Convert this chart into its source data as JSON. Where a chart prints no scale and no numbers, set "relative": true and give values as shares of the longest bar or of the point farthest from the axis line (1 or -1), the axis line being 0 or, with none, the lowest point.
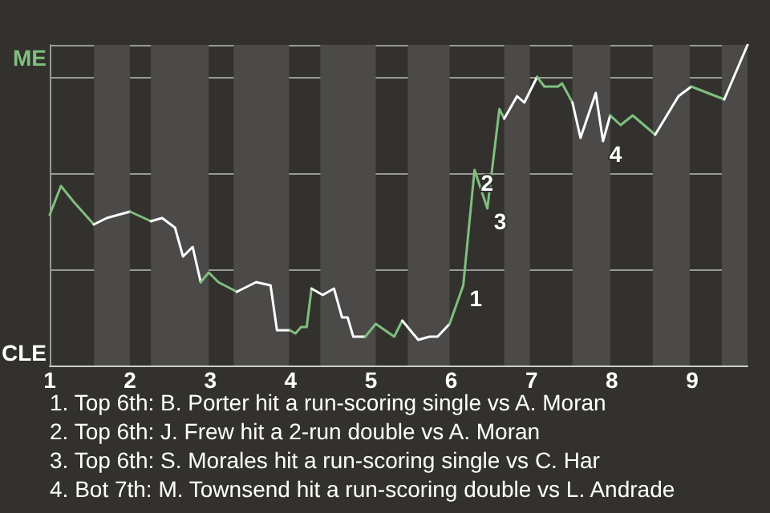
{
  "chart_data": {
    "type": "line",
    "relative": true,
    "marker": "none",
    "line_style": "solid",
    "grid": "y",
    "xlim": [
      1,
      9.69
    ],
    "xticks": [
      1,
      2,
      3,
      4,
      5,
      6,
      7,
      8,
      9
    ],
    "bands": [
      {
        "axis": "x",
        "from": 1.55,
        "to": 2.0,
        "color": "#4b4a48"
      },
      {
        "axis": "x",
        "from": 2.26,
        "to": 2.98,
        "color": "#4b4a48"
      },
      {
        "axis": "x",
        "from": 3.29,
        "to": 3.98,
        "color": "#4b4a48"
      },
      {
        "axis": "x",
        "from": 4.37,
        "to": 5.06,
        "color": "#4b4a48"
      },
      {
        "axis": "x",
        "from": 5.46,
        "to": 5.98,
        "color": "#4b4a48"
      },
      {
        "axis": "x",
        "from": 6.66,
        "to": 6.98,
        "color": "#4b4a48"
      },
      {
        "axis": "x",
        "from": 7.51,
        "to": 7.98,
        "color": "#4b4a48"
      },
      {
        "axis": "x",
        "from": 8.51,
        "to": 8.97,
        "color": "#4b4a48"
      },
      {
        "axis": "x",
        "from": 9.37,
        "to": 9.69,
        "color": "#4b4a48"
      }
    ],
    "series": [
      {
        "color": "#7fbf7f",
        "x": [
          1.0,
          1.14,
          1.3,
          1.55
        ],
        "values": [
          0.47,
          0.56,
          0.51,
          0.44
        ]
      },
      {
        "color": "#ffffff",
        "x": [
          1.55,
          1.71,
          2.0
        ],
        "values": [
          0.44,
          0.46,
          0.48
        ]
      },
      {
        "color": "#7fbf7f",
        "x": [
          2.0,
          2.26
        ],
        "values": [
          0.48,
          0.45
        ]
      },
      {
        "color": "#ffffff",
        "x": [
          2.26,
          2.4,
          2.56,
          2.66,
          2.78,
          2.88
        ],
        "values": [
          0.45,
          0.46,
          0.43,
          0.34,
          0.37,
          0.26
        ]
      },
      {
        "color": "#7fbf7f",
        "x": [
          2.88,
          2.98,
          3.1,
          3.33
        ],
        "values": [
          0.26,
          0.29,
          0.26,
          0.23
        ]
      },
      {
        "color": "#ffffff",
        "x": [
          3.33,
          3.57,
          3.75,
          3.83,
          3.99
        ],
        "values": [
          0.23,
          0.26,
          0.25,
          0.11,
          0.11
        ]
      },
      {
        "color": "#7fbf7f",
        "x": [
          3.99,
          4.06,
          4.13,
          4.2,
          4.26
        ],
        "values": [
          0.11,
          0.1,
          0.12,
          0.12,
          0.24
        ]
      },
      {
        "color": "#ffffff",
        "x": [
          4.26,
          4.4,
          4.54,
          4.64,
          4.71,
          4.78,
          4.93
        ],
        "values": [
          0.24,
          0.22,
          0.24,
          0.15,
          0.15,
          0.09,
          0.09
        ]
      },
      {
        "color": "#7fbf7f",
        "x": [
          4.93,
          5.06,
          5.29,
          5.39
        ],
        "values": [
          0.09,
          0.13,
          0.09,
          0.14
        ]
      },
      {
        "color": "#ffffff",
        "x": [
          5.39,
          5.59,
          5.73,
          5.83,
          5.98
        ],
        "values": [
          0.14,
          0.08,
          0.09,
          0.09,
          0.13
        ]
      },
      {
        "color": "#7fbf7f",
        "x": [
          5.98,
          6.15,
          6.29,
          6.45,
          6.6,
          6.66
        ],
        "values": [
          0.13,
          0.25,
          0.61,
          0.49,
          0.8,
          0.77
        ]
      },
      {
        "color": "#ffffff",
        "x": [
          6.66,
          6.82,
          6.91,
          7.07
        ],
        "values": [
          0.77,
          0.84,
          0.82,
          0.9
        ]
      },
      {
        "color": "#7fbf7f",
        "x": [
          7.07,
          7.16,
          7.33,
          7.38,
          7.51
        ],
        "values": [
          0.9,
          0.87,
          0.87,
          0.88,
          0.82
        ]
      },
      {
        "color": "#ffffff",
        "x": [
          7.51,
          7.61,
          7.8,
          7.89,
          7.98
        ],
        "values": [
          0.82,
          0.71,
          0.85,
          0.7,
          0.78
        ]
      },
      {
        "color": "#7fbf7f",
        "x": [
          7.98,
          8.11,
          8.26,
          8.54
        ],
        "values": [
          0.78,
          0.75,
          0.78,
          0.72
        ]
      },
      {
        "color": "#ffffff",
        "x": [
          8.54,
          8.83,
          8.99
        ],
        "values": [
          0.72,
          0.84,
          0.87
        ]
      },
      {
        "color": "#7fbf7f",
        "x": [
          8.99,
          9.4
        ],
        "values": [
          0.87,
          0.83
        ]
      },
      {
        "color": "#ffffff",
        "x": [
          9.4,
          9.69
        ],
        "values": [
          0.83,
          1
        ]
      }
    ],
    "annotations": [
      "ME",
      "CLE",
      {
        "text": "1",
        "x": 6.15,
        "y": 0.25
      },
      {
        "text": "2",
        "x": 6.29,
        "y": 0.61
      },
      {
        "text": "3",
        "x": 6.45,
        "y": 0.49
      },
      {
        "text": "4",
        "x": 7.89,
        "y": 0.7
      },
      "1. Top 6th: B. Porter hit a run-scoring single vs A. Moran",
      "2. Top 6th: J. Frew hit a 2-run double vs A. Moran",
      "3. Top 6th: S. Morales hit a run-scoring single vs C. Har",
      "4. Bot 7th: M. Townsend hit a run-scoring double vs L. Andrade"
    ]
  }
}
